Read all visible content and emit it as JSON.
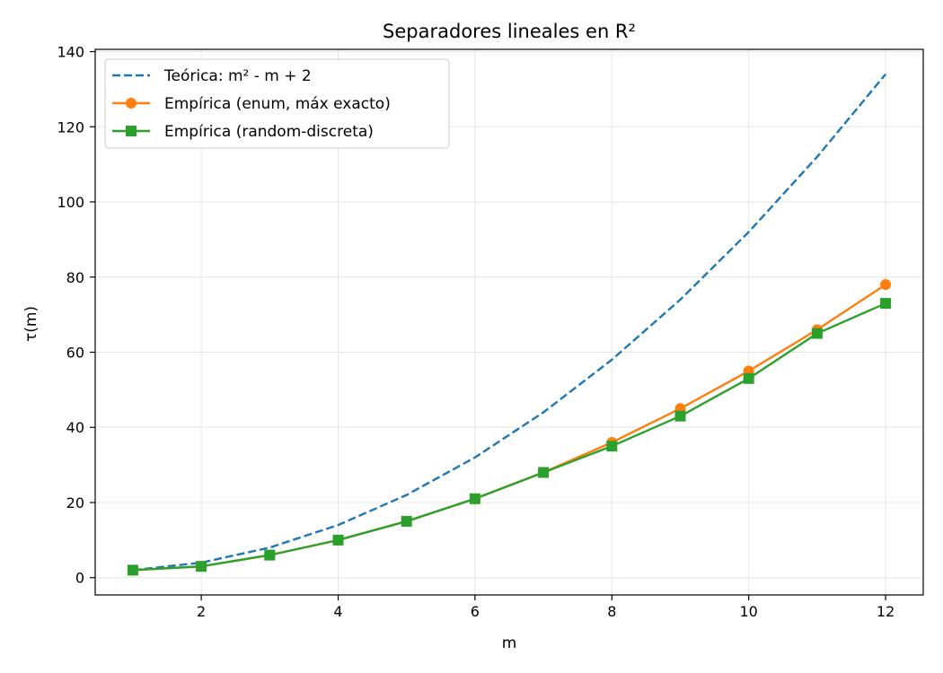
{
  "chart_data": {
    "type": "line",
    "title": "Separadores lineales en R²",
    "xlabel": "m",
    "ylabel": "τ(m)",
    "xlim": [
      0.45,
      12.55
    ],
    "ylim": [
      -4.6,
      140.6
    ],
    "xticks": [
      2,
      4,
      6,
      8,
      10,
      12
    ],
    "yticks": [
      0,
      20,
      40,
      60,
      80,
      100,
      120,
      140
    ],
    "grid": true,
    "legend_position": "top-left",
    "x": [
      1,
      2,
      3,
      4,
      5,
      6,
      7,
      8,
      9,
      10,
      11,
      12
    ],
    "series": [
      {
        "name": "Teórica: m² - m + 2",
        "values": [
          2,
          4,
          8,
          14,
          22,
          32,
          44,
          58,
          74,
          92,
          112,
          134
        ],
        "color": "#1f77b4",
        "style": "dashed",
        "marker": "none"
      },
      {
        "name": "Empírica (enum, máx exacto)",
        "values": [
          2,
          3,
          6,
          10,
          15,
          21,
          28,
          36,
          45,
          55,
          66,
          78
        ],
        "color": "#ff7f0e",
        "style": "solid",
        "marker": "circle"
      },
      {
        "name": "Empírica (random-discreta)",
        "values": [
          2,
          3,
          6,
          10,
          15,
          21,
          28,
          35,
          43,
          53,
          65,
          73
        ],
        "color": "#2ca02c",
        "style": "solid",
        "marker": "square"
      }
    ]
  }
}
